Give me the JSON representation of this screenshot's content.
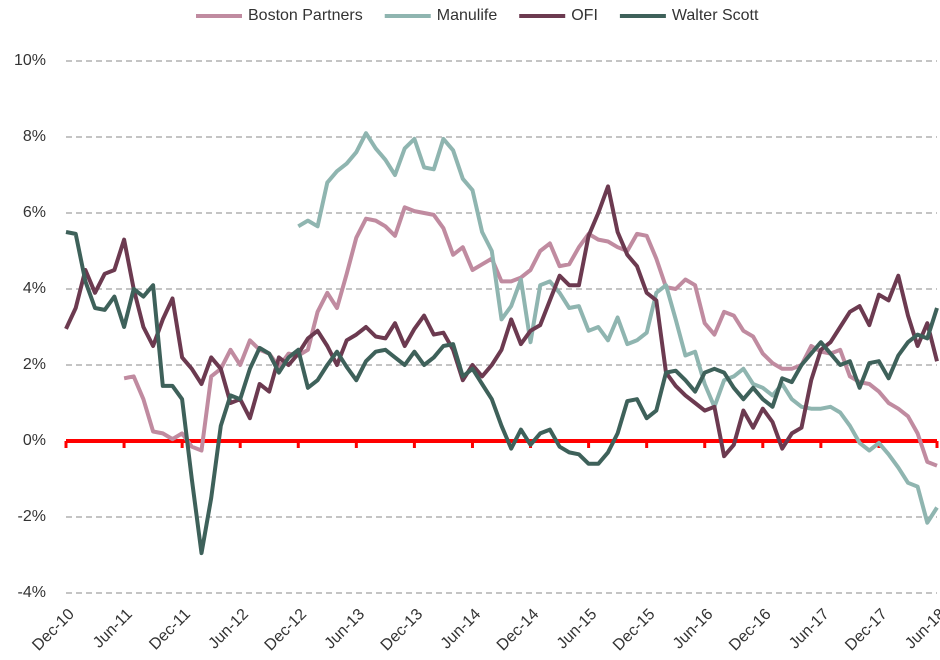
{
  "chart_data": {
    "type": "line",
    "categories": [
      "Dec-10",
      null,
      null,
      null,
      null,
      null,
      "Jun-11",
      null,
      null,
      null,
      null,
      null,
      "Dec-11",
      null,
      null,
      null,
      null,
      null,
      "Jun-12",
      null,
      null,
      null,
      null,
      null,
      "Dec-12",
      null,
      null,
      null,
      null,
      null,
      "Jun-13",
      null,
      null,
      null,
      null,
      null,
      "Dec-13",
      null,
      null,
      null,
      null,
      null,
      "Jun-14",
      null,
      null,
      null,
      null,
      null,
      "Dec-14",
      null,
      null,
      null,
      null,
      null,
      "Jun-15",
      null,
      null,
      null,
      null,
      null,
      "Dec-15",
      null,
      null,
      null,
      null,
      null,
      "Jun-16",
      null,
      null,
      null,
      null,
      null,
      "Dec-16",
      null,
      null,
      null,
      null,
      null,
      "Jun-17",
      null,
      null,
      null,
      null,
      null,
      "Dec-17",
      null,
      null,
      null,
      null,
      null,
      "Jun-18"
    ],
    "series": [
      {
        "name": "Boston Partners",
        "color": "#c08ba0",
        "values": [
          null,
          null,
          null,
          null,
          null,
          null,
          1.65,
          1.7,
          1.1,
          0.25,
          0.2,
          0.05,
          0.2,
          -0.15,
          -0.25,
          1.7,
          1.9,
          2.4,
          2.0,
          2.65,
          2.4,
          2.3,
          1.95,
          2.3,
          2.25,
          2.4,
          3.4,
          3.9,
          3.5,
          4.4,
          5.35,
          5.85,
          5.8,
          5.65,
          5.4,
          6.15,
          6.05,
          6.0,
          5.95,
          5.6,
          4.9,
          5.1,
          4.5,
          4.65,
          4.8,
          4.2,
          4.2,
          4.3,
          4.5,
          5.0,
          5.2,
          4.6,
          4.65,
          5.1,
          5.45,
          5.3,
          5.25,
          5.1,
          5.0,
          5.45,
          5.4,
          4.8,
          4.05,
          4.0,
          4.25,
          4.1,
          3.1,
          2.8,
          3.4,
          3.3,
          2.9,
          2.75,
          2.3,
          2.05,
          1.9,
          1.9,
          2.0,
          2.5,
          2.35,
          2.3,
          2.4,
          1.7,
          1.55,
          1.5,
          1.3,
          1.0,
          0.85,
          0.65,
          0.2,
          -0.55,
          -0.65
        ]
      },
      {
        "name": "Manulife",
        "color": "#8fb5b0",
        "values": [
          null,
          null,
          null,
          null,
          null,
          null,
          null,
          null,
          null,
          null,
          null,
          null,
          null,
          null,
          null,
          null,
          null,
          null,
          null,
          null,
          null,
          null,
          null,
          null,
          5.65,
          5.8,
          5.65,
          6.8,
          7.1,
          7.3,
          7.6,
          8.1,
          7.7,
          7.4,
          7.0,
          7.7,
          7.95,
          7.2,
          7.15,
          7.95,
          7.65,
          6.9,
          6.6,
          5.5,
          5.0,
          3.2,
          3.55,
          4.25,
          2.6,
          4.1,
          4.2,
          3.9,
          3.5,
          3.55,
          2.9,
          3.0,
          2.65,
          3.25,
          2.55,
          2.65,
          2.85,
          3.9,
          4.1,
          3.2,
          2.25,
          2.35,
          1.5,
          0.9,
          1.6,
          1.7,
          1.9,
          1.5,
          1.4,
          1.2,
          1.5,
          1.1,
          0.9,
          0.85,
          0.85,
          0.9,
          0.75,
          0.4,
          -0.05,
          -0.25,
          -0.05,
          -0.35,
          -0.7,
          -1.1,
          -1.2,
          -2.15,
          -1.75
        ]
      },
      {
        "name": "OFI",
        "color": "#6c3a50",
        "values": [
          2.95,
          3.5,
          4.5,
          3.9,
          4.4,
          4.5,
          5.3,
          4.0,
          3.0,
          2.5,
          3.2,
          3.75,
          2.2,
          1.9,
          1.5,
          2.2,
          1.9,
          1.0,
          1.1,
          0.6,
          1.5,
          1.3,
          2.2,
          2.0,
          2.3,
          2.7,
          2.9,
          2.5,
          2.0,
          2.65,
          2.8,
          3.0,
          2.75,
          2.7,
          3.1,
          2.5,
          2.95,
          3.3,
          2.8,
          2.85,
          2.4,
          1.6,
          2.0,
          1.7,
          2.0,
          2.4,
          3.2,
          2.55,
          2.9,
          3.05,
          3.7,
          4.35,
          4.1,
          4.1,
          5.4,
          6.0,
          6.7,
          5.5,
          4.9,
          4.6,
          3.9,
          3.7,
          1.8,
          1.45,
          1.2,
          1.0,
          0.8,
          0.9,
          -0.4,
          -0.1,
          0.8,
          0.35,
          0.85,
          0.5,
          -0.2,
          0.2,
          0.35,
          1.6,
          2.4,
          2.6,
          3.0,
          3.4,
          3.55,
          3.05,
          3.85,
          3.7,
          4.35,
          3.3,
          2.5,
          3.1,
          2.1
        ]
      },
      {
        "name": "Walter Scott",
        "color": "#3e615a",
        "values": [
          5.5,
          5.45,
          4.2,
          3.5,
          3.45,
          3.8,
          3.0,
          4.0,
          3.8,
          4.1,
          1.45,
          1.45,
          1.1,
          -1.0,
          -2.95,
          -1.5,
          0.4,
          1.2,
          1.1,
          1.9,
          2.45,
          2.3,
          1.8,
          2.2,
          2.4,
          1.4,
          1.6,
          2.0,
          2.35,
          1.95,
          1.6,
          2.1,
          2.35,
          2.4,
          2.2,
          2.0,
          2.35,
          2.0,
          2.2,
          2.5,
          2.55,
          1.7,
          1.9,
          1.5,
          1.1,
          0.4,
          -0.2,
          0.3,
          -0.1,
          0.2,
          0.3,
          -0.15,
          -0.3,
          -0.35,
          -0.6,
          -0.6,
          -0.3,
          0.2,
          1.05,
          1.1,
          0.6,
          0.8,
          1.8,
          1.85,
          1.6,
          1.3,
          1.8,
          1.9,
          1.8,
          1.4,
          1.1,
          1.4,
          1.1,
          0.9,
          1.65,
          1.55,
          2.0,
          2.3,
          2.6,
          2.3,
          2.0,
          2.1,
          1.4,
          2.05,
          2.1,
          1.65,
          2.25,
          2.6,
          2.8,
          2.7,
          3.5
        ]
      }
    ],
    "ylim": [
      -4,
      10
    ],
    "yticks": [
      {
        "value": -4,
        "label": "-4%"
      },
      {
        "value": -2,
        "label": "-2%"
      },
      {
        "value": 0,
        "label": "0%"
      },
      {
        "value": 2,
        "label": "2%"
      },
      {
        "value": 4,
        "label": "4%"
      },
      {
        "value": 6,
        "label": "6%"
      },
      {
        "value": 8,
        "label": "8%"
      },
      {
        "value": 10,
        "label": "10%"
      }
    ],
    "grid": true,
    "zero_line_color": "#ff0000",
    "legend": "top"
  }
}
